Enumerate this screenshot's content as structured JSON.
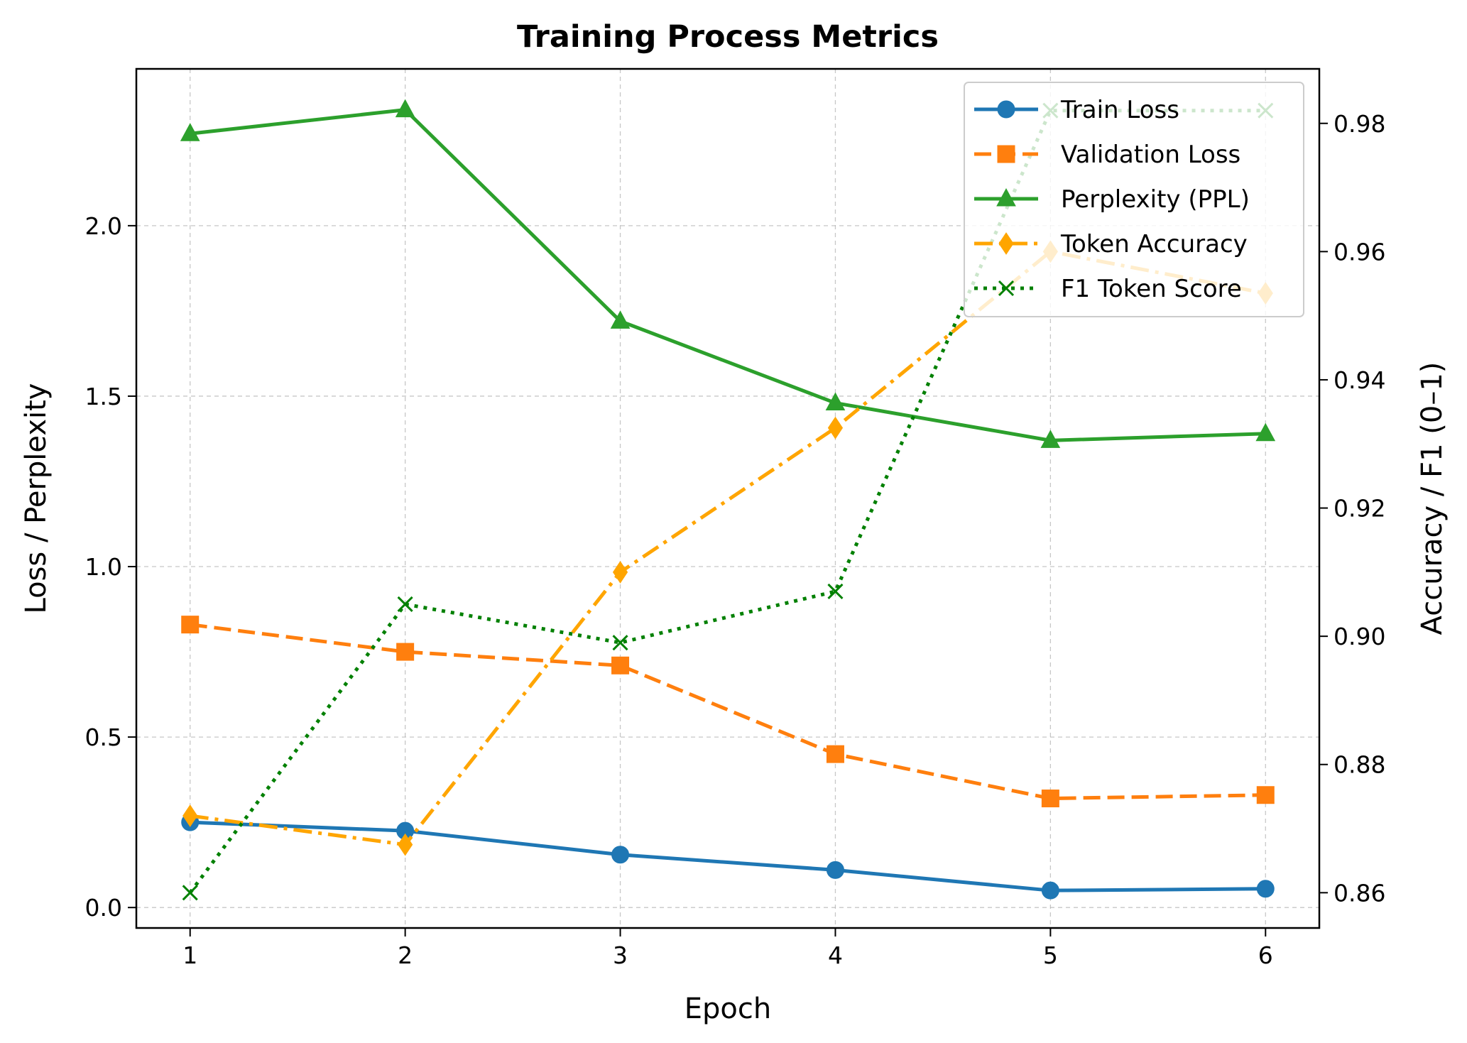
{
  "chart_data": {
    "type": "line",
    "title": "Training Process Metrics",
    "xlabel": "Epoch",
    "ylabel": "Loss / Perplexity",
    "ylabel_right": "Accuracy / F1 (0–1)",
    "x": [
      1,
      2,
      3,
      4,
      5,
      6
    ],
    "xticks": [
      "1",
      "2",
      "3",
      "4",
      "5",
      "6"
    ],
    "xlim": [
      0.75,
      6.25
    ],
    "ylim": [
      -0.06,
      2.46
    ],
    "yticks": [
      "0.0",
      "0.5",
      "1.0",
      "1.5",
      "2.0"
    ],
    "ylim_right": [
      0.8545,
      0.9885
    ],
    "yticks_right": [
      "0.86",
      "0.88",
      "0.90",
      "0.92",
      "0.94",
      "0.96",
      "0.98"
    ],
    "grid": true,
    "legend_position": "top-right",
    "series": [
      {
        "name": "Train Loss",
        "axis": "left",
        "color": "#1f77b4",
        "line": "solid",
        "marker": "circle",
        "values": [
          0.25,
          0.225,
          0.155,
          0.11,
          0.05,
          0.055
        ]
      },
      {
        "name": "Validation Loss",
        "axis": "left",
        "color": "#ff7f0e",
        "line": "dashed",
        "marker": "square",
        "values": [
          0.83,
          0.75,
          0.71,
          0.45,
          0.32,
          0.33
        ]
      },
      {
        "name": "Perplexity (PPL)",
        "axis": "left",
        "color": "#2ca02c",
        "line": "solid",
        "marker": "triangle",
        "values": [
          2.27,
          2.34,
          1.72,
          1.48,
          1.37,
          1.39
        ]
      },
      {
        "name": "Token Accuracy",
        "axis": "right",
        "color": "#ffa500",
        "line": "dashdot",
        "marker": "diamond",
        "values": [
          0.872,
          0.8675,
          0.91,
          0.9325,
          0.96,
          0.9535
        ]
      },
      {
        "name": "F1 Token Score",
        "axis": "right",
        "color": "#008000",
        "line": "dotted",
        "marker": "x",
        "values": [
          0.86,
          0.905,
          0.899,
          0.907,
          0.982,
          0.982
        ]
      }
    ]
  }
}
